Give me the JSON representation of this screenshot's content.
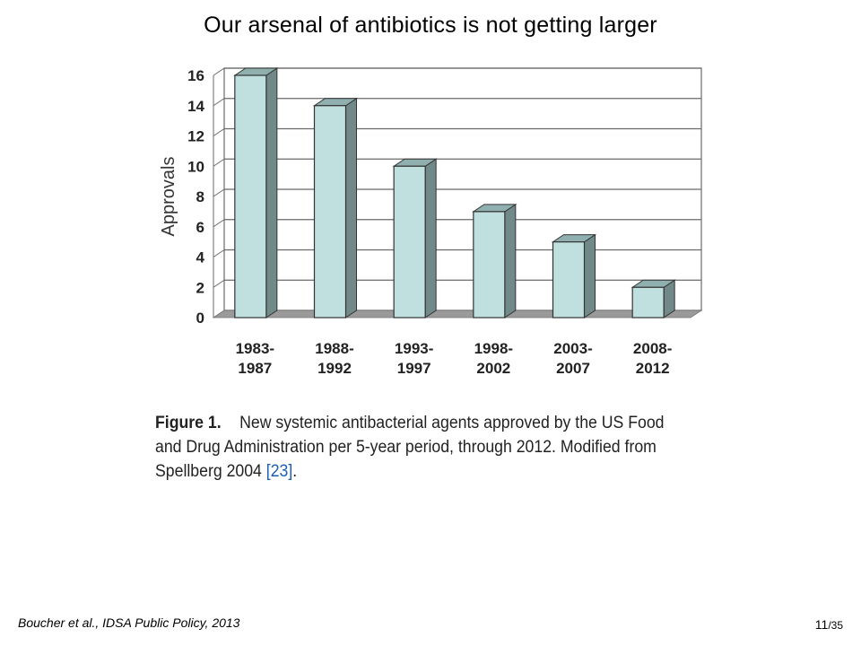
{
  "slide": {
    "title": "Our arsenal of antibiotics is not getting larger",
    "source": "Boucher et al., IDSA Public Policy, 2013",
    "page_current": "11",
    "page_total": "/35"
  },
  "caption": {
    "label": "Figure 1.",
    "text": "New systemic antibacterial agents approved by the US Food and Drug Administration per 5-year period, through 2012. Modified from Spellberg 2004 ",
    "ref_text": "[23]",
    "end": "."
  },
  "chart_data": {
    "type": "bar",
    "categories": [
      [
        "1983-",
        "1987"
      ],
      [
        "1988-",
        "1992"
      ],
      [
        "1993-",
        "1997"
      ],
      [
        "1998-",
        "2002"
      ],
      [
        "2003-",
        "2007"
      ],
      [
        "2008-",
        "2012"
      ]
    ],
    "values": [
      16,
      14,
      10,
      7,
      5,
      2
    ],
    "ylabel": "Approvals",
    "ylim": [
      0,
      16
    ],
    "yticks": [
      0,
      2,
      4,
      6,
      8,
      10,
      12,
      14,
      16
    ],
    "grid": true,
    "style": "3d",
    "colors": {
      "bar_front": "#bfe0df",
      "bar_side": "#718a89",
      "bar_top": "#8fb0ae",
      "floor": "#9a9a9a",
      "grid": "#6a6a6a"
    }
  }
}
